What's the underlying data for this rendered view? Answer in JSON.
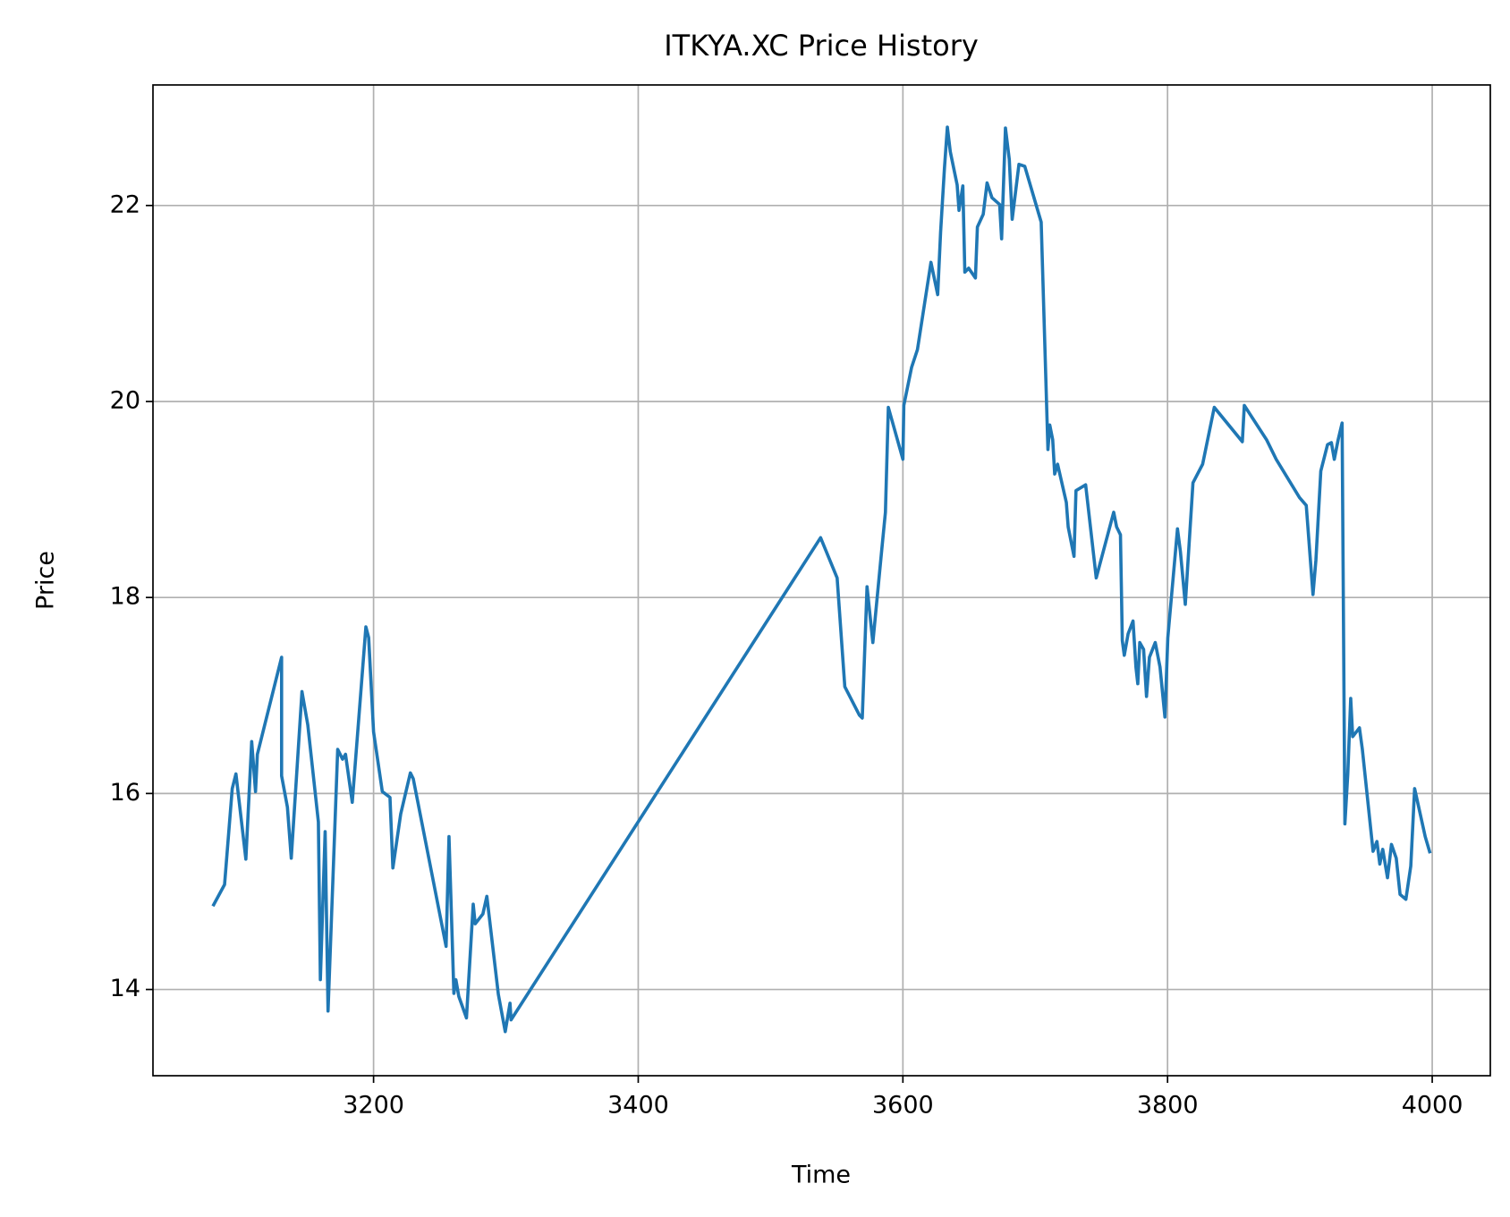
{
  "chart_data": {
    "type": "line",
    "title": "ITKYA.XC Price History",
    "x_label": "Time",
    "y_label": "Price",
    "grid": true,
    "xlim": [
      3033.3,
      4043.9
    ],
    "ylim": [
      13.12,
      23.23
    ],
    "xticks": [
      3200,
      3400,
      3600,
      3800,
      4000
    ],
    "yticks": [
      14,
      16,
      18,
      20,
      22
    ],
    "series": [
      {
        "color": "#1f77b4",
        "x": [
          3078.6,
          3087.4,
          3093.2,
          3096,
          3103.5,
          3107.9,
          3110.8,
          3112.2,
          3130.5,
          3130.5,
          3134.9,
          3137.8,
          3145.9,
          3150.3,
          3158.3,
          3159.8,
          3163.4,
          3165.6,
          3172.9,
          3176.6,
          3178.8,
          3183.9,
          3194.2,
          3196.3,
          3200,
          3206.6,
          3212.4,
          3214.6,
          3220.5,
          3227.8,
          3230,
          3254.8,
          3257,
          3260.7,
          3262.2,
          3264.4,
          3270.2,
          3275.3,
          3276.8,
          3282.6,
          3285.6,
          3294.3,
          3299.5,
          3303.1,
          3303.9,
          3537.8,
          3550.3,
          3556.1,
          3567.1,
          3569.3,
          3572.9,
          3577.3,
          3583.9,
          3586.8,
          3589,
          3600,
          3600.7,
          3606.6,
          3611,
          3621.2,
          3626.3,
          3628.5,
          3631.4,
          3633.6,
          3635.8,
          3641,
          3642.4,
          3645.3,
          3646.8,
          3649.7,
          3654.8,
          3656.3,
          3660.7,
          3663.6,
          3667.3,
          3673.1,
          3674.6,
          3677.5,
          3680.4,
          3682.6,
          3687.7,
          3692.1,
          3704.5,
          3709.6,
          3711,
          3713.2,
          3714.7,
          3716.9,
          3723.5,
          3724.9,
          3729.3,
          3730.8,
          3738.1,
          3746.1,
          3759.3,
          3761.5,
          3764.4,
          3765.8,
          3767.3,
          3770.2,
          3773.9,
          3776.1,
          3777.5,
          3779,
          3781.9,
          3784.1,
          3786.3,
          3790.7,
          3794.3,
          3798,
          3800.2,
          3807.5,
          3809.7,
          3813.4,
          3819.2,
          3826.5,
          3835.3,
          3856.5,
          3858,
          3874.8,
          3882.1,
          3899.7,
          3904.8,
          3909.9,
          3912.1,
          3915.8,
          3920.9,
          3923.8,
          3926,
          3928.9,
          3931.9,
          3934,
          3936.2,
          3938.4,
          3939.9,
          3945,
          3947.2,
          3955.3,
          3958.2,
          3960.4,
          3962.6,
          3966.2,
          3969.2,
          3972.8,
          3975.7,
          3980.1,
          3983.8,
          3986.7,
          3994.7,
          3998.4
        ],
        "values": [
          14.85,
          15.07,
          16.05,
          16.2,
          15.33,
          16.53,
          16.02,
          16.4,
          17.39,
          16.18,
          15.86,
          15.34,
          17.04,
          16.7,
          15.71,
          14.1,
          15.61,
          13.78,
          16.45,
          16.35,
          16.4,
          15.91,
          17.7,
          17.59,
          16.63,
          16.02,
          15.96,
          15.24,
          15.79,
          16.21,
          16.15,
          14.44,
          15.56,
          13.96,
          14.1,
          13.93,
          13.71,
          14.87,
          14.67,
          14.77,
          14.95,
          13.95,
          13.57,
          13.86,
          13.69,
          18.61,
          18.2,
          17.09,
          16.8,
          16.77,
          18.11,
          17.54,
          18.47,
          18.87,
          19.94,
          19.41,
          19.96,
          20.35,
          20.53,
          21.42,
          21.09,
          21.73,
          22.38,
          22.8,
          22.55,
          22.21,
          21.95,
          22.2,
          21.32,
          21.36,
          21.26,
          21.78,
          21.91,
          22.23,
          22.08,
          22.01,
          21.66,
          22.79,
          22.47,
          21.86,
          22.42,
          22.4,
          21.83,
          19.51,
          19.76,
          19.61,
          19.26,
          19.36,
          18.97,
          18.72,
          18.42,
          19.09,
          19.15,
          18.2,
          18.87,
          18.72,
          18.64,
          17.56,
          17.41,
          17.63,
          17.76,
          17.29,
          17.12,
          17.54,
          17.47,
          16.99,
          17.39,
          17.54,
          17.29,
          16.78,
          17.59,
          18.7,
          18.47,
          17.93,
          19.17,
          19.36,
          19.94,
          19.59,
          19.96,
          19.61,
          19.41,
          19.02,
          18.94,
          18.03,
          18.38,
          19.29,
          19.56,
          19.58,
          19.41,
          19.61,
          19.78,
          15.69,
          16.2,
          16.97,
          16.58,
          16.67,
          16.45,
          15.41,
          15.51,
          15.28,
          15.43,
          15.14,
          15.48,
          15.34,
          14.97,
          14.92,
          15.26,
          16.05,
          15.56,
          15.39
        ]
      }
    ]
  }
}
